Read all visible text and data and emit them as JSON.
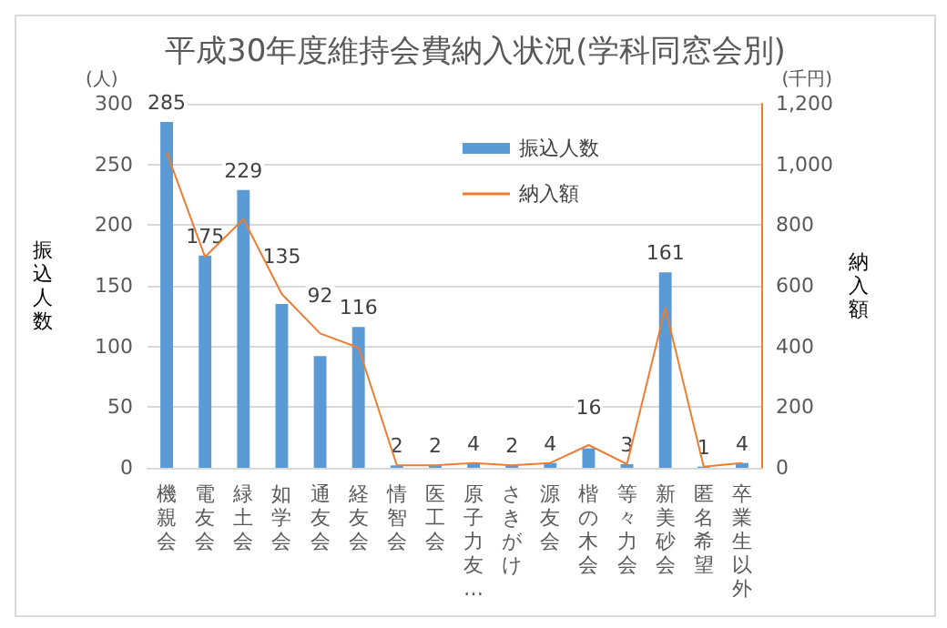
{
  "chart_data": {
    "type": "bar",
    "title": "平成30年度維持会費納入状況(学科同窓会別)",
    "categories": [
      "機親会",
      "電友会",
      "緑土会",
      "如学会",
      "通友会",
      "経友会",
      "情智会",
      "医工会",
      "原子力友…",
      "さきがけ",
      "源友会",
      "楷の木会",
      "等々力会",
      "新美砂会",
      "匿名希望",
      "卒業生以外"
    ],
    "series": [
      {
        "name": "振込人数",
        "type": "bar",
        "color": "#5b9bd5",
        "values": [
          285,
          175,
          229,
          135,
          92,
          116,
          2,
          2,
          4,
          2,
          4,
          16,
          3,
          161,
          1,
          4
        ],
        "value_labels": [
          "285",
          "175",
          "229",
          "135",
          "92",
          "116",
          "2",
          "2",
          "4",
          "2",
          "4",
          "16",
          "3",
          "161",
          "1",
          "4"
        ]
      },
      {
        "name": "納入額",
        "type": "line",
        "axis": "y2",
        "color": "#ed7d31",
        "values": [
          1040,
          695,
          820,
          573,
          443,
          396,
          8,
          8,
          16,
          8,
          16,
          75,
          12,
          527,
          4,
          16
        ]
      }
    ],
    "ylabel": "振込人数",
    "y2label": "納入額",
    "annotations": [
      "(人)",
      "(千円)"
    ],
    "ylim": [
      0,
      300
    ],
    "yticks": [
      0,
      50,
      100,
      150,
      200,
      250,
      300
    ],
    "y2lim": [
      0,
      1200
    ],
    "y2ticks": [
      {
        "value": 0,
        "label": "0"
      },
      {
        "value": 200,
        "label": "200"
      },
      {
        "value": 400,
        "label": "400"
      },
      {
        "value": 600,
        "label": "600"
      },
      {
        "value": 800,
        "label": "800"
      },
      {
        "value": 1000,
        "label": "1,000"
      },
      {
        "value": 1200,
        "label": "1,200"
      }
    ],
    "grid": "y",
    "legend": "top",
    "marker": "none",
    "line_style": "solid"
  }
}
